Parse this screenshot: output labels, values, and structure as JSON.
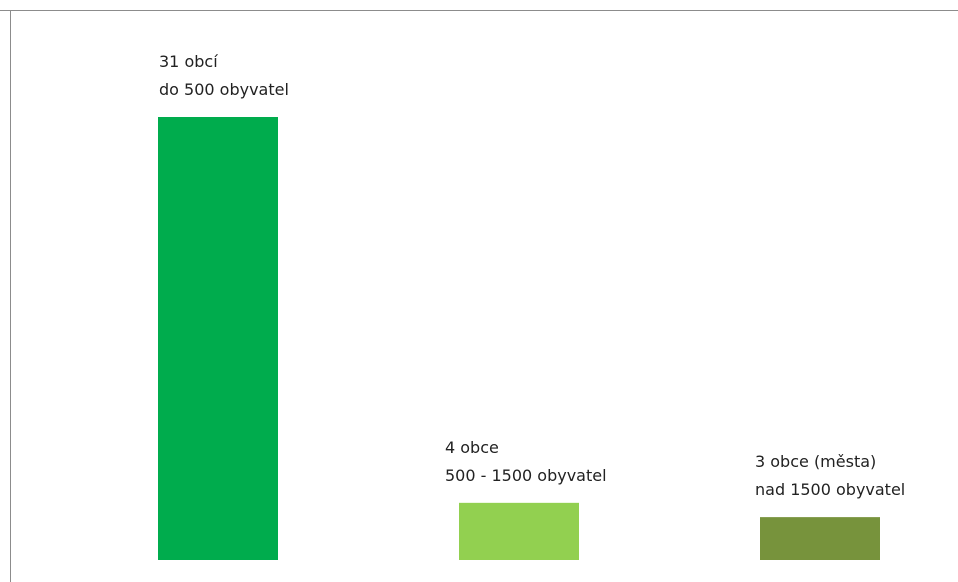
{
  "chart_data": {
    "type": "bar",
    "categories": [
      {
        "line1": "31 obcí",
        "line2": "do 500 obyvatel"
      },
      {
        "line1": "4 obce",
        "line2": "500 - 1500 obyvatel"
      },
      {
        "line1": "3 obce (města)",
        "line2": "nad 1500 obyvatel"
      }
    ],
    "values": [
      31,
      4,
      3
    ],
    "colors": [
      "#00ac4d",
      "#92d050",
      "#77933c"
    ],
    "ylim": [
      0,
      31
    ],
    "grid": false,
    "legend": "none"
  }
}
